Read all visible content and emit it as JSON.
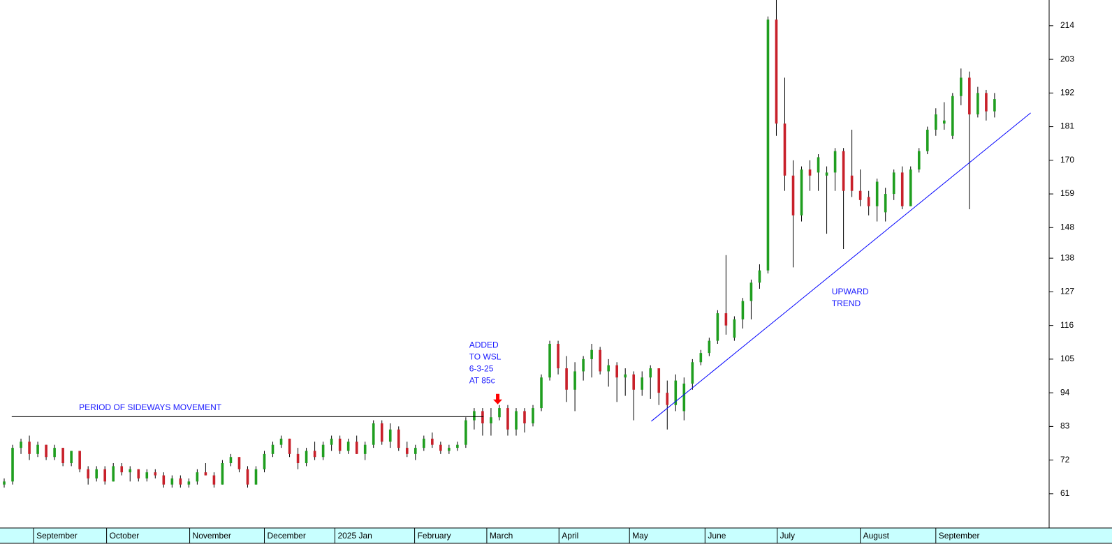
{
  "chart_data": {
    "type": "candlestick",
    "up_color": "#1f9e1f",
    "down_color": "#c8202a",
    "flat_color": "#000000",
    "xlim": [
      0,
      125
    ],
    "ylim": [
      49.8,
      222.4
    ],
    "yticks": [
      61,
      72,
      83,
      94,
      105,
      116,
      127,
      138,
      148,
      159,
      170,
      181,
      192,
      203,
      214
    ],
    "xticks": [
      {
        "value": 4.0,
        "label": "September"
      },
      {
        "value": 12.7,
        "label": "October"
      },
      {
        "value": 22.6,
        "label": "November"
      },
      {
        "value": 31.5,
        "label": "December"
      },
      {
        "value": 39.9,
        "label": "2025 Jan"
      },
      {
        "value": 49.4,
        "label": "February"
      },
      {
        "value": 58.0,
        "label": "March"
      },
      {
        "value": 66.6,
        "label": "April"
      },
      {
        "value": 75.0,
        "label": "May"
      },
      {
        "value": 84.0,
        "label": "June"
      },
      {
        "value": 92.6,
        "label": "July"
      },
      {
        "value": 102.5,
        "label": "August"
      },
      {
        "value": 111.5,
        "label": "September"
      }
    ],
    "candles": [
      [
        64,
        66,
        63,
        65
      ],
      [
        65,
        77,
        64,
        76
      ],
      [
        76,
        79,
        74,
        78
      ],
      [
        78,
        80,
        72,
        74
      ],
      [
        74,
        78,
        73,
        77
      ],
      [
        77,
        77,
        72,
        73
      ],
      [
        73,
        77,
        72,
        76
      ],
      [
        76,
        76,
        70,
        71
      ],
      [
        71,
        75,
        70,
        75
      ],
      [
        75,
        75,
        68,
        69
      ],
      [
        69,
        70,
        64,
        66
      ],
      [
        66,
        70,
        65,
        69
      ],
      [
        69,
        70,
        64,
        65
      ],
      [
        65,
        71,
        65,
        70
      ],
      [
        70,
        71,
        67,
        68
      ],
      [
        68,
        70,
        65,
        69
      ],
      [
        69,
        69,
        65,
        66
      ],
      [
        66,
        69,
        65,
        68
      ],
      [
        68,
        69,
        66,
        67
      ],
      [
        67,
        68,
        63,
        64
      ],
      [
        64,
        67,
        63,
        66
      ],
      [
        66,
        67,
        63,
        64
      ],
      [
        64,
        66,
        63,
        65
      ],
      [
        65,
        69,
        64,
        68
      ],
      [
        68,
        71,
        67,
        67
      ],
      [
        67,
        68,
        63,
        64
      ],
      [
        64,
        72,
        64,
        71
      ],
      [
        71,
        74,
        70,
        73
      ],
      [
        73,
        73,
        68,
        69
      ],
      [
        69,
        70,
        63,
        64
      ],
      [
        64,
        70,
        64,
        69
      ],
      [
        69,
        75,
        68,
        74
      ],
      [
        74,
        78,
        73,
        77
      ],
      [
        77,
        80,
        76,
        79
      ],
      [
        79,
        79,
        73,
        74
      ],
      [
        74,
        76,
        69,
        71
      ],
      [
        71,
        76,
        70,
        75
      ],
      [
        75,
        78,
        72,
        73
      ],
      [
        73,
        78,
        72,
        77
      ],
      [
        77,
        80,
        75,
        79
      ],
      [
        79,
        80,
        74,
        75
      ],
      [
        75,
        79,
        74,
        78
      ],
      [
        78,
        80,
        74,
        74
      ],
      [
        74,
        78,
        72,
        77
      ],
      [
        77,
        85,
        76,
        84
      ],
      [
        84,
        85,
        77,
        78
      ],
      [
        78,
        84,
        76,
        82
      ],
      [
        82,
        83,
        75,
        76
      ],
      [
        76,
        78,
        73,
        74
      ],
      [
        74,
        77,
        72,
        76
      ],
      [
        76,
        80,
        75,
        79
      ],
      [
        79,
        81,
        76,
        77
      ],
      [
        77,
        78,
        74,
        75
      ],
      [
        75,
        77,
        74,
        76
      ],
      [
        76,
        78,
        75,
        77
      ],
      [
        77,
        86,
        76,
        85
      ],
      [
        85,
        89,
        82,
        88
      ],
      [
        88,
        89,
        80,
        84
      ],
      [
        84,
        89,
        80,
        86
      ],
      [
        86,
        90,
        85,
        89
      ],
      [
        89,
        90,
        80,
        82
      ],
      [
        82,
        89,
        80,
        88
      ],
      [
        88,
        89,
        81,
        84
      ],
      [
        84,
        90,
        83,
        89
      ],
      [
        89,
        100,
        88,
        99
      ],
      [
        99,
        111,
        98,
        110
      ],
      [
        110,
        111,
        100,
        102
      ],
      [
        102,
        106,
        91,
        95
      ],
      [
        95,
        104,
        88,
        101
      ],
      [
        101,
        106,
        98,
        105
      ],
      [
        105,
        110,
        99,
        108
      ],
      [
        108,
        109,
        100,
        101
      ],
      [
        101,
        105,
        96,
        103
      ],
      [
        103,
        104,
        91,
        99
      ],
      [
        99,
        102,
        93,
        100
      ],
      [
        100,
        101,
        85,
        95
      ],
      [
        95,
        101,
        93,
        99
      ],
      [
        99,
        103,
        92,
        102
      ],
      [
        102,
        102,
        90,
        94
      ],
      [
        94,
        98,
        82,
        90
      ],
      [
        90,
        100,
        88,
        98
      ],
      [
        88,
        99,
        85,
        97
      ],
      [
        97,
        105,
        95,
        104
      ],
      [
        104,
        108,
        103,
        107
      ],
      [
        107,
        112,
        106,
        111
      ],
      [
        111,
        121,
        110,
        120
      ],
      [
        120,
        139,
        113,
        116
      ],
      [
        112,
        119,
        111,
        118
      ],
      [
        118,
        125,
        115,
        124
      ],
      [
        124,
        131,
        118,
        130
      ],
      [
        130,
        136,
        128,
        134
      ],
      [
        134,
        217,
        133,
        216
      ],
      [
        216,
        223,
        178,
        182
      ],
      [
        182,
        197,
        160,
        165
      ],
      [
        165,
        170,
        135,
        152
      ],
      [
        152,
        168,
        150,
        167
      ],
      [
        167,
        170,
        160,
        165
      ],
      [
        166,
        172,
        160,
        171
      ],
      [
        165,
        168,
        146,
        166
      ],
      [
        166,
        174,
        160,
        173
      ],
      [
        173,
        174,
        141,
        160
      ],
      [
        165,
        180,
        158,
        160
      ],
      [
        160,
        167,
        155,
        157
      ],
      [
        158,
        160,
        152,
        155
      ],
      [
        155,
        164,
        150,
        163
      ],
      [
        153,
        161,
        150,
        159
      ],
      [
        159,
        167,
        157,
        166
      ],
      [
        166,
        168,
        154,
        155
      ],
      [
        155,
        168,
        155,
        167
      ],
      [
        167,
        174,
        166,
        173
      ],
      [
        173,
        181,
        172,
        180
      ],
      [
        180,
        187,
        178,
        185
      ],
      [
        182,
        189,
        180,
        183
      ],
      [
        178,
        192,
        177,
        191
      ],
      [
        191,
        200,
        188,
        197
      ],
      [
        197,
        199,
        154,
        185
      ],
      [
        185,
        194,
        184,
        192
      ],
      [
        192,
        193,
        183,
        186
      ],
      [
        186,
        192,
        184,
        190
      ]
    ],
    "lines": [
      {
        "x": [
          1.4,
          57.6
        ],
        "y": [
          86.2,
          86.2
        ],
        "color": "#000000"
      },
      {
        "x": [
          77.6,
          122.8
        ],
        "y": [
          84.7,
          185.5
        ],
        "color": "#0000ff"
      }
    ],
    "arrow": {
      "x": 59.3,
      "y": 90.2,
      "color": "#ff0000"
    },
    "annotations": [
      {
        "lines": [
          "PERIOD OF SIDEWAYS MOVEMENT"
        ],
        "x": 17.9,
        "y": 89.0,
        "anchor": "middle",
        "color": "#1a1aff"
      },
      {
        "lines": [
          "ADDED",
          "TO WSL",
          "6-3-25",
          "AT 85c"
        ],
        "x": 55.9,
        "y": 109.5,
        "anchor": "start",
        "color": "#1a1aff"
      },
      {
        "lines": [
          "UPWARD",
          "TREND"
        ],
        "x": 99.1,
        "y": 126.9,
        "anchor": "start",
        "color": "#1a1aff"
      }
    ]
  }
}
